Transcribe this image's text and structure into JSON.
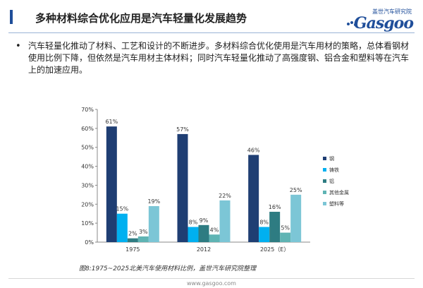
{
  "header": {
    "title": "多种材料综合优化应用是汽车轻量化发展趋势",
    "logo_cn": "盖世汽车研究院",
    "logo_en": "Gasgoo"
  },
  "bullet": {
    "text": "汽车轻量化推动了材料、工艺和设计的不断进步。多材料综合优化使用是汽车用材的策略，总体看钢材使用比例下降，但依然是汽车用材主体材料；同时汽车轻量化推动了高强度钢、铝合金和塑料等在汽车上的加速应用。"
  },
  "chart_data": {
    "type": "bar",
    "categories": [
      "1975",
      "2012",
      "2025（E）"
    ],
    "series": [
      {
        "name": "钢",
        "values": [
          61,
          57,
          46
        ],
        "color": "#1f3e73"
      },
      {
        "name": "铸铁",
        "values": [
          15,
          8,
          8
        ],
        "color": "#00b0f0"
      },
      {
        "name": "铝",
        "values": [
          2,
          9,
          16
        ],
        "color": "#2e7c82"
      },
      {
        "name": "其他金属",
        "values": [
          3,
          4,
          5
        ],
        "color": "#5fb4b4"
      },
      {
        "name": "塑料等",
        "values": [
          19,
          22,
          25
        ],
        "color": "#7cc6d6"
      }
    ],
    "ylim": [
      0,
      70
    ],
    "yticks": [
      "0%",
      "10%",
      "20%",
      "30%",
      "40%",
      "50%",
      "60%",
      "70%"
    ],
    "value_suffix": "%",
    "legend_position": "right",
    "grid": false
  },
  "caption": "图8:1975~2025北美汽车使用材料比例，盖世汽车研究院整理",
  "footer": "www.gasgoo.com"
}
